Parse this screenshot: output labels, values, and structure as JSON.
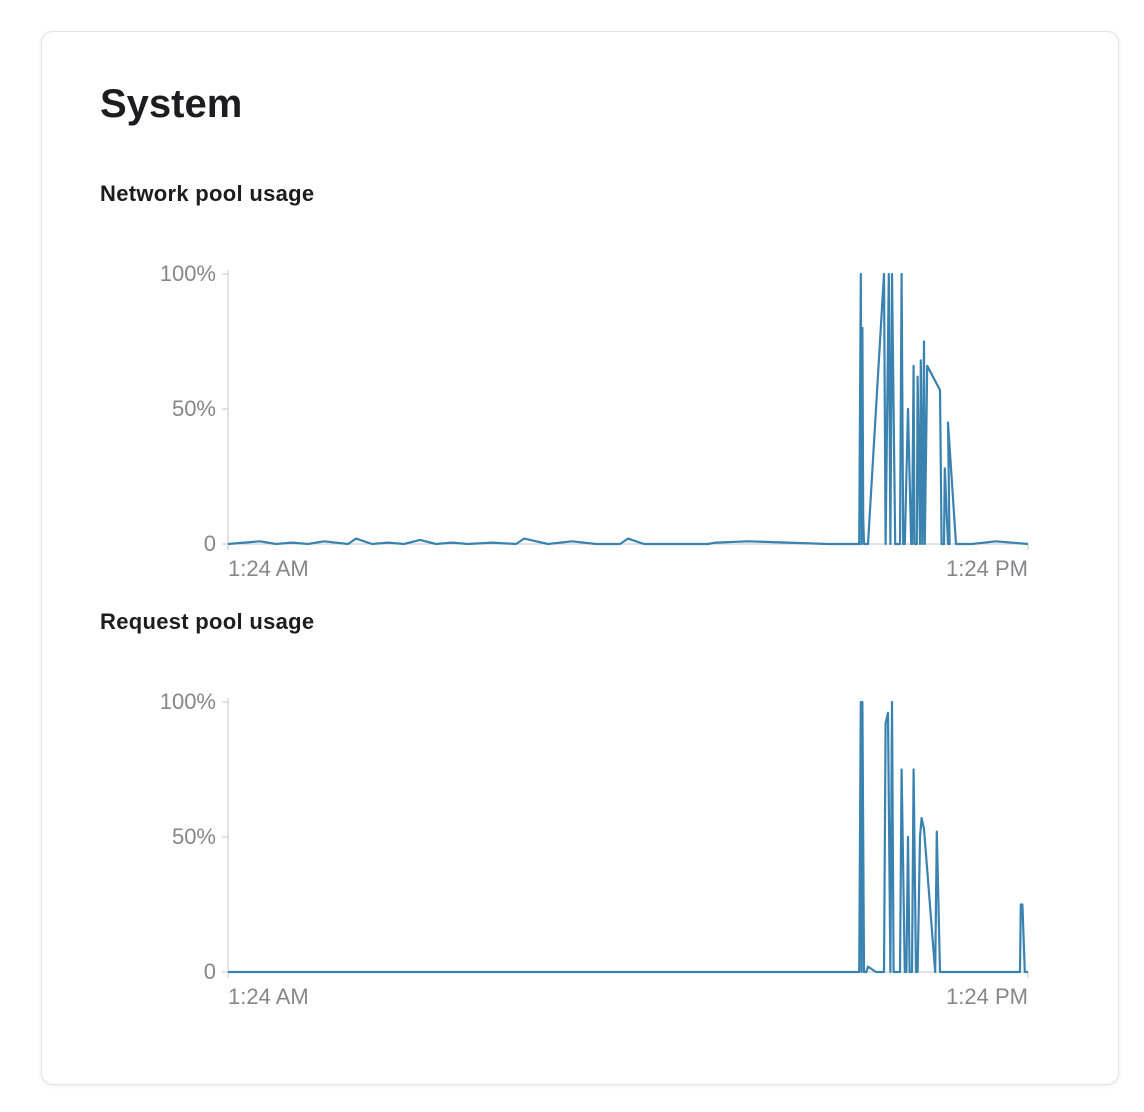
{
  "card": {
    "title": "System"
  },
  "colors": {
    "series": "#3a82b0",
    "axis": "#c7c7cc",
    "tick_text": "#86868b"
  },
  "chart_data": [
    {
      "type": "line",
      "title": "Network pool usage",
      "xlabel": "",
      "ylabel": "",
      "x_ticks": [
        "1:24 AM",
        "1:24 PM"
      ],
      "y_ticks": [
        "0",
        "50%",
        "100%"
      ],
      "ylim": [
        0,
        100
      ],
      "xlim": [
        0,
        1
      ],
      "grid": false,
      "legend": "none",
      "series": [
        {
          "x": [
            0,
            0.04,
            0.06,
            0.08,
            0.1,
            0.12,
            0.15,
            0.16,
            0.18,
            0.2,
            0.22,
            0.24,
            0.26,
            0.28,
            0.3,
            0.33,
            0.36,
            0.37,
            0.4,
            0.43,
            0.46,
            0.49,
            0.5,
            0.52,
            0.55,
            0.6,
            0.61,
            0.65,
            0.7,
            0.75,
            0.79,
            0.789,
            0.791,
            0.792,
            0.793,
            0.794,
            0.795,
            0.796,
            0.8,
            0.82,
            0.822,
            0.826,
            0.828,
            0.83,
            0.834,
            0.836,
            0.84,
            0.842,
            0.844,
            0.846,
            0.85,
            0.854,
            0.855,
            0.857,
            0.858,
            0.861,
            0.862,
            0.865,
            0.866,
            0.868,
            0.87,
            0.871,
            0.874,
            0.89,
            0.892,
            0.895,
            0.896,
            0.9,
            0.902,
            0.9,
            0.91,
            0.93,
            0.96,
            1.0
          ],
          "y": [
            0,
            1,
            0,
            0.5,
            0,
            1,
            0,
            2,
            0,
            0.5,
            0,
            1.5,
            0,
            0.5,
            0,
            0.5,
            0,
            2,
            0,
            1,
            0,
            0,
            2,
            0,
            0,
            0,
            0.5,
            1,
            0.5,
            0,
            0,
            0,
            100,
            0,
            80,
            10,
            0,
            0,
            0,
            100,
            0,
            100,
            0,
            100,
            0,
            0,
            0,
            100,
            0,
            0,
            50,
            0,
            0,
            66,
            0,
            0,
            62,
            0,
            68,
            0,
            75,
            0,
            66,
            57,
            0,
            0,
            28,
            0,
            0,
            45,
            0,
            0,
            1,
            0
          ]
        }
      ]
    },
    {
      "type": "line",
      "title": "Request pool usage",
      "xlabel": "",
      "ylabel": "",
      "x_ticks": [
        "1:24 AM",
        "1:24 PM"
      ],
      "y_ticks": [
        "0",
        "50%",
        "100%"
      ],
      "ylim": [
        0,
        100
      ],
      "xlim": [
        0,
        1
      ],
      "grid": false,
      "legend": "none",
      "series": [
        {
          "x": [
            0,
            0.1,
            0.2,
            0.3,
            0.4,
            0.5,
            0.6,
            0.7,
            0.78,
            0.789,
            0.791,
            0.792,
            0.793,
            0.795,
            0.798,
            0.8,
            0.81,
            0.82,
            0.822,
            0.825,
            0.828,
            0.83,
            0.832,
            0.836,
            0.84,
            0.842,
            0.846,
            0.848,
            0.85,
            0.852,
            0.855,
            0.857,
            0.86,
            0.862,
            0.865,
            0.867,
            0.87,
            0.884,
            0.886,
            0.89,
            0.9,
            0.91,
            0.92,
            0.95,
            0.99,
            0.991,
            0.993,
            0.996,
            1.0
          ],
          "y": [
            0,
            0,
            0,
            0,
            0,
            0,
            0,
            0,
            0,
            0,
            100,
            0,
            100,
            0,
            0,
            2,
            0,
            0,
            92,
            96,
            0,
            100,
            0,
            0,
            0,
            75,
            0,
            0,
            50,
            0,
            0,
            75,
            0,
            0,
            50,
            57,
            53,
            0,
            52,
            0,
            0,
            0,
            0,
            0,
            0,
            25,
            25,
            0,
            0
          ]
        }
      ]
    }
  ]
}
